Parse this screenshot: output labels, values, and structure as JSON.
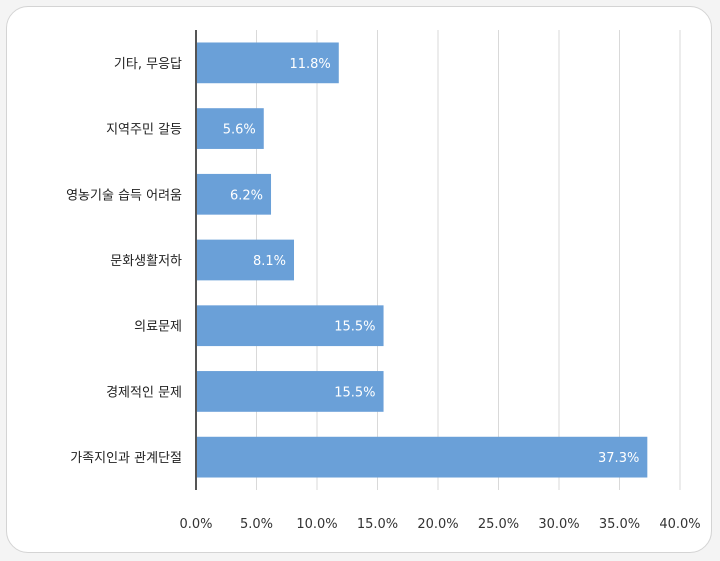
{
  "chart_data": {
    "type": "bar",
    "orientation": "horizontal",
    "categories": [
      "기타, 무응답",
      "지역주민 갈등",
      "영농기술 습득 어려움",
      "문화생활저하",
      "의료문제",
      "경제적인 문제",
      "가족지인과 관계단절"
    ],
    "values": [
      11.8,
      5.6,
      6.2,
      8.1,
      15.5,
      15.5,
      37.3
    ],
    "data_labels": [
      "11.8%",
      "5.6%",
      "6.2%",
      "8.1%",
      "15.5%",
      "15.5%",
      "37.3%"
    ],
    "xlim": [
      0,
      40
    ],
    "xticks": [
      0,
      5,
      10,
      15,
      20,
      25,
      30,
      35,
      40
    ],
    "xtick_labels": [
      "0.0%",
      "5.0%",
      "10.0%",
      "15.0%",
      "20.0%",
      "25.0%",
      "30.0%",
      "35.0%",
      "40.0%"
    ],
    "grid": "vertical",
    "bar_color": "#6aa0d8",
    "title": "",
    "xlabel": "",
    "ylabel": ""
  }
}
